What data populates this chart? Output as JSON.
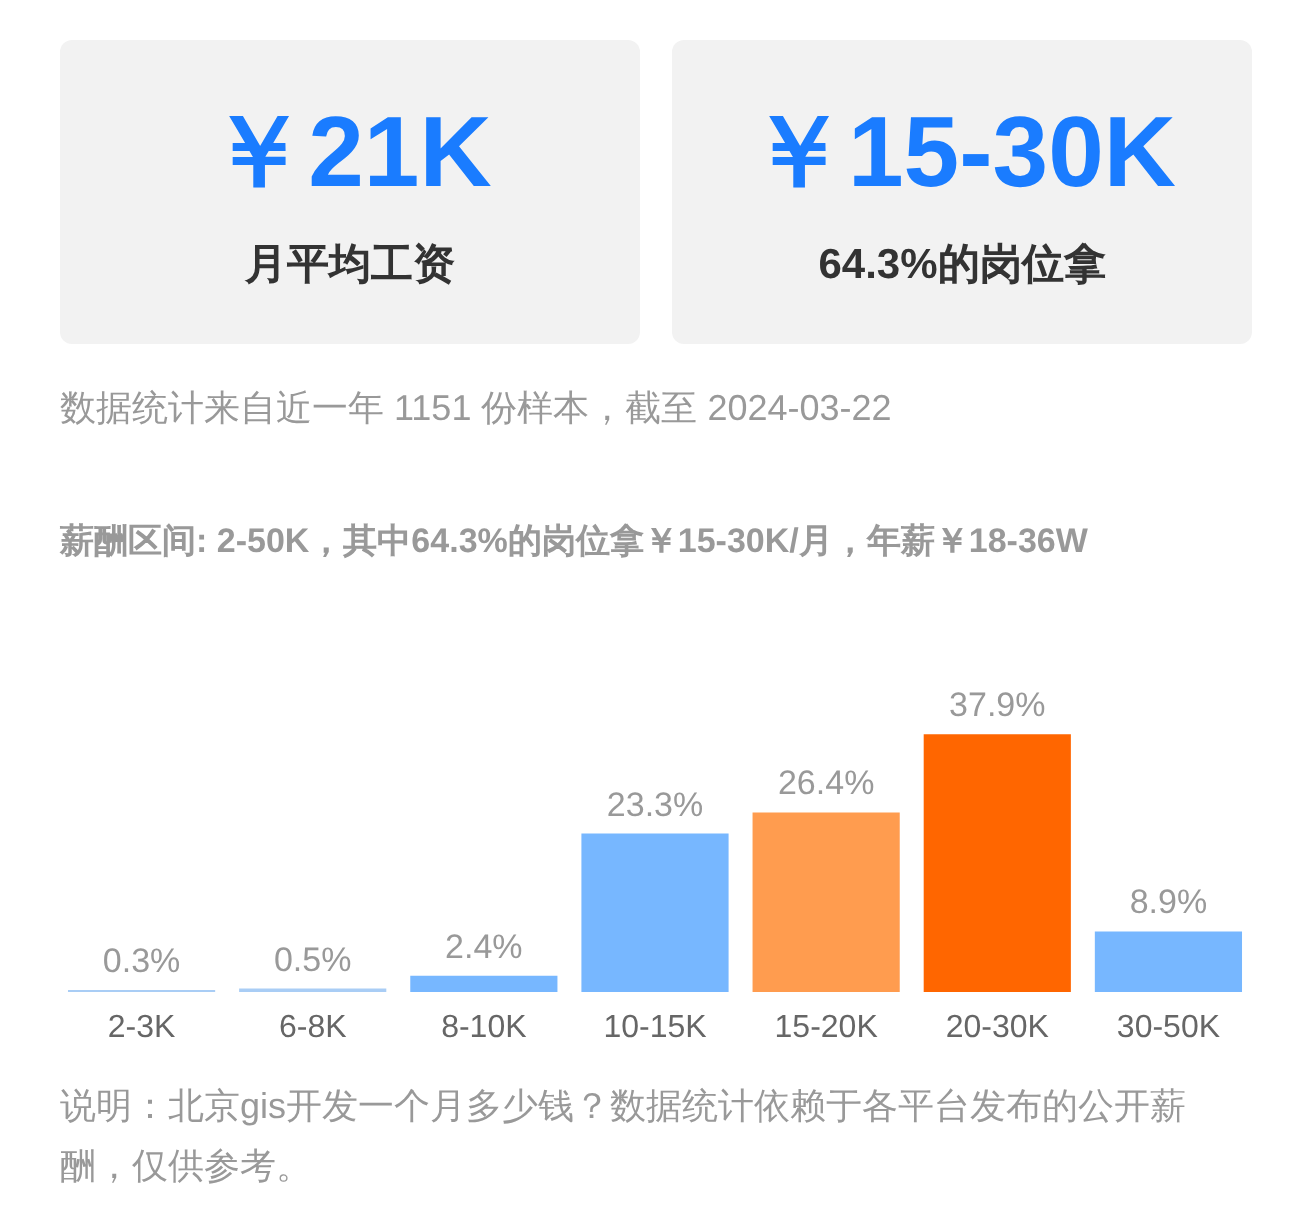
{
  "chart_data": {
    "type": "bar",
    "subtitle": "数据统计来自近一年 1151 份样本，截至 2024-03-22",
    "annotations": [
      "￥21K",
      "月平均工资",
      "￥15-30K",
      "64.3%的岗位拿",
      "薪酬区间: 2-50K，其中64.3%的岗位拿￥15-30K/月，年薪￥18-36W",
      "说明：北京gis开发一个月多少钱？数据统计依赖于各平台发布的公开薪酬，仅供参考。"
    ],
    "categories": [
      "2-3K",
      "6-8K",
      "8-10K",
      "10-15K",
      "15-20K",
      "20-30K",
      "30-50K"
    ],
    "values": [
      0.3,
      0.5,
      2.4,
      23.3,
      26.4,
      37.9,
      8.9
    ],
    "colors": [
      "#a9cdf5",
      "#a9cdf5",
      "#77b7ff",
      "#77b7ff",
      "#ff9c4f",
      "#ff6600",
      "#77b7ff"
    ],
    "value_labels": [
      "0.3%",
      "0.5%",
      "2.4%",
      "23.3%",
      "26.4%",
      "37.9%",
      "8.9%"
    ]
  }
}
